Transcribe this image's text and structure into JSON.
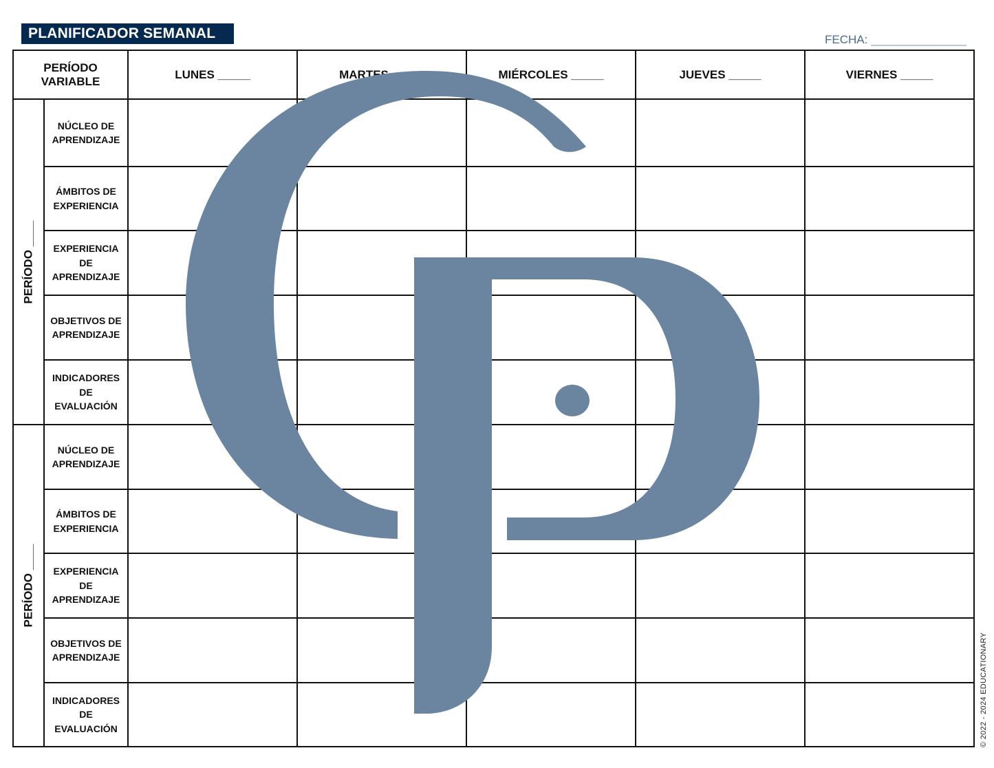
{
  "title": "PLANIFICADOR SEMANAL",
  "fecha": {
    "label": "FECHA:",
    "blank": "______________"
  },
  "header": {
    "corner": "PERÍODO VARIABLE",
    "days": [
      "LUNES _____",
      "MARTES _____",
      "MIÉRCOLES _____",
      "JUEVES  _____",
      "VIERNES _____"
    ]
  },
  "periods": [
    {
      "label": "PERÍODO ____",
      "rows": [
        "NÚCLEO DE APRENDIZAJE",
        "ÁMBITOS DE EXPERIENCIA",
        "EXPERIENCIA DE APRENDIZAJE",
        "OBJETIVOS DE APRENDIZAJE",
        "INDICADORES DE EVALUACIÓN"
      ]
    },
    {
      "label": "PERÍODO ____",
      "rows": [
        "NÚCLEO DE APRENDIZAJE",
        "ÁMBITOS DE EXPERIENCIA",
        "EXPERIENCIA DE APRENDIZAJE",
        "OBJETIVOS DE APRENDIZAJE",
        "INDICADORES DE EVALUACIÓN"
      ]
    }
  ],
  "copyright": "© 2022 - 2024 EDUCATIONARY",
  "colors": {
    "title_bg": "#062a4f",
    "watermark": "#6b85a0",
    "fecha": "#4b6b8e"
  },
  "watermark_logo": "CP"
}
